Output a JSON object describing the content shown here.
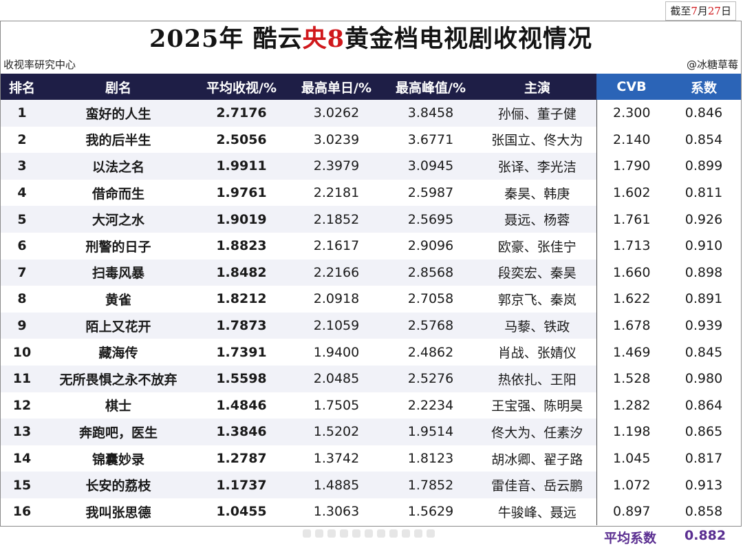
{
  "date_tag": {
    "prefix": "截至",
    "month": "7",
    "month_unit": "月",
    "day": "27",
    "day_unit": "日"
  },
  "title": {
    "part1": "2025年 酷云",
    "part2": "央8",
    "part3": "黄金档电视剧收视情况"
  },
  "source_left": "收视率研究中心",
  "source_right": "@冰糖草莓",
  "headers": [
    "排名",
    "剧名",
    "平均收视/%",
    "最高单日/%",
    "最高峰值/%",
    "主演",
    "CVB",
    "系数"
  ],
  "rows": [
    {
      "rank": "1",
      "name": "蛮好的人生",
      "avg": "2.7176",
      "day_max": "3.0262",
      "peak": "3.8458",
      "cast": "孙俪、董子健",
      "cvb": "2.300",
      "coef": "0.846"
    },
    {
      "rank": "2",
      "name": "我的后半生",
      "avg": "2.5056",
      "day_max": "3.0239",
      "peak": "3.6771",
      "cast": "张国立、佟大为",
      "cvb": "2.140",
      "coef": "0.854"
    },
    {
      "rank": "3",
      "name": "以法之名",
      "avg": "1.9911",
      "day_max": "2.3979",
      "peak": "3.0945",
      "cast": "张译、李光洁",
      "cvb": "1.790",
      "coef": "0.899"
    },
    {
      "rank": "4",
      "name": "借命而生",
      "avg": "1.9761",
      "day_max": "2.2181",
      "peak": "2.5987",
      "cast": "秦昊、韩庚",
      "cvb": "1.602",
      "coef": "0.811"
    },
    {
      "rank": "5",
      "name": "大河之水",
      "avg": "1.9019",
      "day_max": "2.1852",
      "peak": "2.5695",
      "cast": "聂远、杨蓉",
      "cvb": "1.761",
      "coef": "0.926"
    },
    {
      "rank": "6",
      "name": "刑警的日子",
      "avg": "1.8823",
      "day_max": "2.1617",
      "peak": "2.9096",
      "cast": "欧豪、张佳宁",
      "cvb": "1.713",
      "coef": "0.910"
    },
    {
      "rank": "7",
      "name": "扫毒风暴",
      "avg": "1.8482",
      "day_max": "2.2166",
      "peak": "2.8568",
      "cast": "段奕宏、秦昊",
      "cvb": "1.660",
      "coef": "0.898"
    },
    {
      "rank": "8",
      "name": "黄雀",
      "avg": "1.8212",
      "day_max": "2.0918",
      "peak": "2.7058",
      "cast": "郭京飞、秦岚",
      "cvb": "1.622",
      "coef": "0.891"
    },
    {
      "rank": "9",
      "name": "陌上又花开",
      "avg": "1.7873",
      "day_max": "2.1059",
      "peak": "2.5768",
      "cast": "马藜、铁政",
      "cvb": "1.678",
      "coef": "0.939"
    },
    {
      "rank": "10",
      "name": "藏海传",
      "avg": "1.7391",
      "day_max": "1.9400",
      "peak": "2.4862",
      "cast": "肖战、张婧仪",
      "cvb": "1.469",
      "coef": "0.845"
    },
    {
      "rank": "11",
      "name": "无所畏惧之永不放弃",
      "avg": "1.5598",
      "day_max": "2.0485",
      "peak": "2.5276",
      "cast": "热依扎、王阳",
      "cvb": "1.528",
      "coef": "0.980"
    },
    {
      "rank": "12",
      "name": "棋士",
      "avg": "1.4846",
      "day_max": "1.7505",
      "peak": "2.2234",
      "cast": "王宝强、陈明昊",
      "cvb": "1.282",
      "coef": "0.864"
    },
    {
      "rank": "13",
      "name": "奔跑吧，医生",
      "avg": "1.3846",
      "day_max": "1.5202",
      "peak": "1.9514",
      "cast": "佟大为、任素汐",
      "cvb": "1.198",
      "coef": "0.865"
    },
    {
      "rank": "14",
      "name": "锦囊妙录",
      "avg": "1.2787",
      "day_max": "1.3742",
      "peak": "1.8123",
      "cast": "胡冰卿、翟子路",
      "cvb": "1.045",
      "coef": "0.817"
    },
    {
      "rank": "15",
      "name": "长安的荔枝",
      "avg": "1.1737",
      "day_max": "1.4885",
      "peak": "1.7852",
      "cast": "雷佳音、岳云鹏",
      "cvb": "1.072",
      "coef": "0.913"
    },
    {
      "rank": "16",
      "name": "我叫张思德",
      "avg": "1.0455",
      "day_max": "1.3063",
      "peak": "1.5629",
      "cast": "牛骏峰、聂远",
      "cvb": "0.897",
      "coef": "0.858"
    }
  ],
  "footer": {
    "label": "平均系数",
    "value": "0.882"
  },
  "colors": {
    "header_bg": "#1e1e46",
    "cvb_header_bg": "#2b64b7",
    "accent_red": "#d0181c",
    "footer_purple": "#5a2e91"
  }
}
